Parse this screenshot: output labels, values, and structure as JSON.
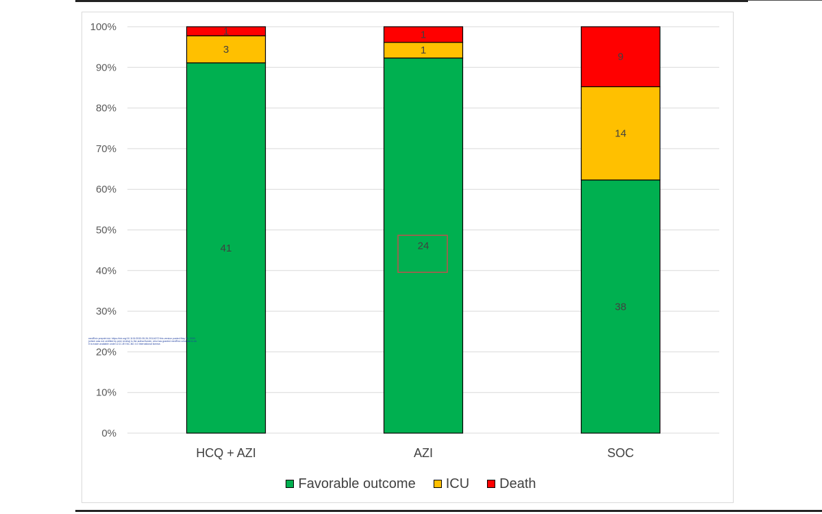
{
  "chart_data": {
    "type": "bar",
    "stacked": true,
    "percent": true,
    "categories": [
      "HCQ + AZI",
      "AZI",
      "SOC"
    ],
    "series": [
      {
        "name": "Favorable outcome",
        "values": [
          41,
          24,
          38
        ],
        "color": "#00b050"
      },
      {
        "name": "ICU",
        "values": [
          3,
          1,
          14
        ],
        "color": "#ffc000"
      },
      {
        "name": "Death",
        "values": [
          1,
          1,
          9
        ],
        "color": "#ff0000"
      }
    ],
    "ylim": [
      0,
      100
    ],
    "yticks": [
      "0%",
      "10%",
      "20%",
      "30%",
      "40%",
      "50%",
      "60%",
      "70%",
      "80%",
      "90%",
      "100%"
    ],
    "grid": true,
    "legend_position": "bottom",
    "highlight": {
      "category": "AZI",
      "series": "Favorable outcome",
      "color": "#c0504d"
    }
  },
  "notice_text": [
    "medRxiv preprint doi: https://doi.org/10.1101/2020.05.26.20114072 this version posted May 31, 2020. The copyright holder for this preprint",
    "(which was not certified by peer review) is the author/funder, who has granted medRxiv a license to display the preprint in perpetuity.",
    "It is made available under a CC-BY-NC-ND 4.0 International license."
  ]
}
